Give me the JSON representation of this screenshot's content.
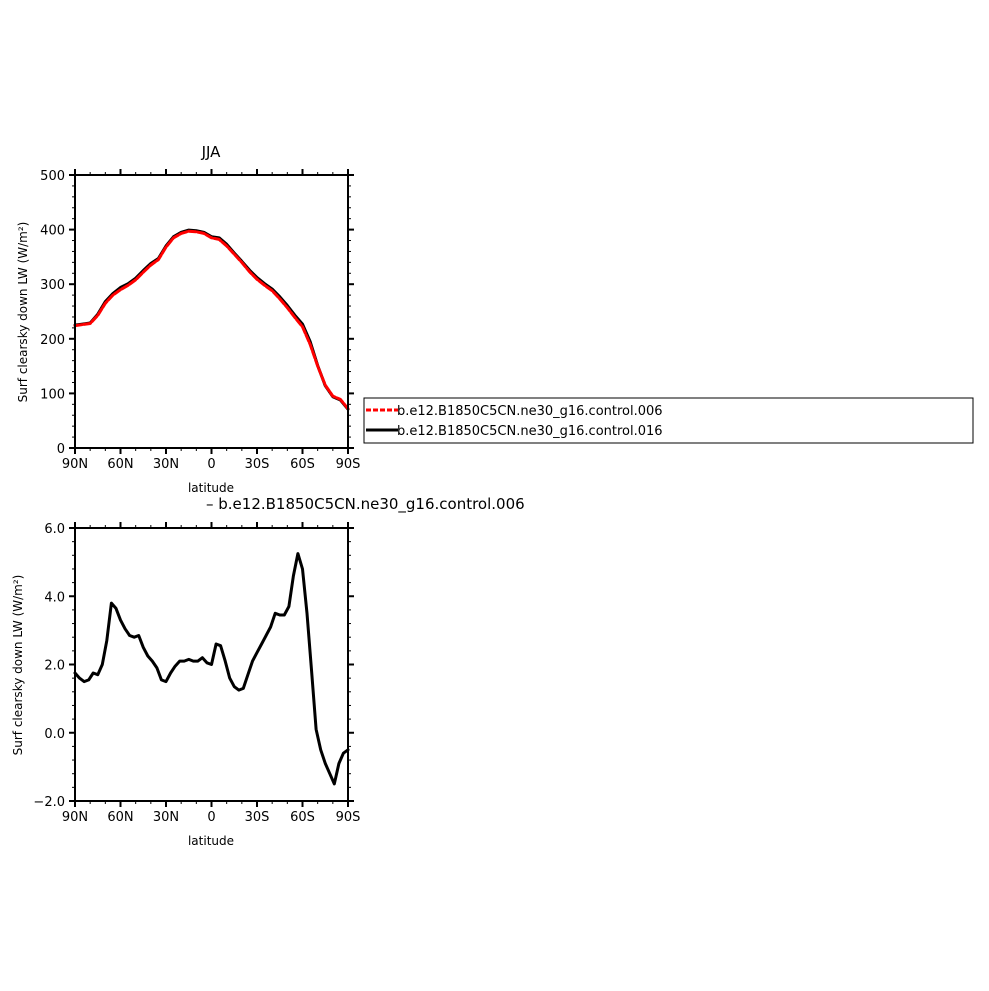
{
  "chart_data": [
    {
      "type": "line",
      "title": "JJA",
      "xlabel": "latitude",
      "ylabel": "Surf clearsky down LW (W/m²)",
      "xlim": [
        90,
        -90
      ],
      "ylim": [
        0,
        500
      ],
      "x_ticks": [
        90,
        60,
        30,
        0,
        -30,
        -60,
        -90
      ],
      "x_tick_labels": [
        "90N",
        "60N",
        "30N",
        "0",
        "30S",
        "60S",
        "90S"
      ],
      "y_ticks": [
        0,
        100,
        200,
        300,
        400,
        500
      ],
      "y_tick_labels": [
        "0",
        "100",
        "200",
        "300",
        "400",
        "500"
      ],
      "legend_position": "right",
      "x": [
        90,
        85,
        80,
        75,
        70,
        65,
        60,
        55,
        50,
        45,
        40,
        35,
        30,
        25,
        20,
        15,
        10,
        5,
        0,
        -5,
        -10,
        -15,
        -20,
        -25,
        -30,
        -35,
        -40,
        -45,
        -50,
        -55,
        -60,
        -65,
        -70,
        -75,
        -80,
        -85,
        -90
      ],
      "series": [
        {
          "name": "b.e12.B1850C5CN.ne30_g16.control.006",
          "color": "#ff0000",
          "dash": true,
          "values": [
            224,
            226,
            228,
            243,
            265,
            280,
            290,
            298,
            308,
            322,
            335,
            345,
            368,
            385,
            393,
            397,
            396,
            393,
            385,
            382,
            370,
            355,
            340,
            323,
            309,
            298,
            288,
            273,
            257,
            239,
            222,
            190,
            150,
            115,
            95,
            89,
            72
          ]
        },
        {
          "name": "b.e12.B1850C5CN.ne30_g16.control.016",
          "color": "#000000",
          "dash": false,
          "values": [
            225,
            227,
            229,
            245,
            268,
            283,
            294,
            301,
            311,
            325,
            338,
            347,
            370,
            387,
            395,
            399,
            398,
            395,
            387,
            385,
            373,
            357,
            342,
            326,
            312,
            301,
            291,
            277,
            261,
            243,
            227,
            195,
            151,
            114,
            94,
            88,
            71
          ]
        }
      ]
    },
    {
      "type": "line",
      "title": "– b.e12.B1850C5CN.ne30_g16.control.006",
      "xlabel": "latitude",
      "ylabel": "Surf clearsky down LW (W/m²)",
      "xlim": [
        90,
        -90
      ],
      "ylim": [
        -2,
        6
      ],
      "x_ticks": [
        90,
        60,
        30,
        0,
        -30,
        -60,
        -90
      ],
      "x_tick_labels": [
        "90N",
        "60N",
        "30N",
        "0",
        "30S",
        "60S",
        "90S"
      ],
      "y_ticks": [
        -2,
        0,
        2,
        4,
        6
      ],
      "y_tick_labels": [
        "−2.0",
        "0.0",
        "2.0",
        "4.0",
        "6.0"
      ],
      "x": [
        90,
        87,
        84,
        81,
        78,
        75,
        72,
        69,
        66,
        63,
        60,
        57,
        54,
        51,
        48,
        45,
        42,
        39,
        36,
        33,
        30,
        27,
        24,
        21,
        18,
        15,
        12,
        9,
        6,
        3,
        0,
        -3,
        -6,
        -9,
        -12,
        -15,
        -18,
        -21,
        -24,
        -27,
        -30,
        -33,
        -36,
        -39,
        -42,
        -45,
        -48,
        -51,
        -54,
        -57,
        -60,
        -63,
        -66,
        -69,
        -72,
        -75,
        -78,
        -81,
        -84,
        -87,
        -90
      ],
      "series": [
        {
          "color": "#000000",
          "values": [
            1.75,
            1.6,
            1.5,
            1.55,
            1.75,
            1.7,
            2.0,
            2.7,
            3.8,
            3.65,
            3.3,
            3.05,
            2.85,
            2.8,
            2.85,
            2.5,
            2.25,
            2.1,
            1.9,
            1.55,
            1.5,
            1.75,
            1.95,
            2.1,
            2.1,
            2.15,
            2.1,
            2.1,
            2.2,
            2.05,
            2.0,
            2.6,
            2.55,
            2.1,
            1.6,
            1.35,
            1.25,
            1.3,
            1.7,
            2.1,
            2.35,
            2.6,
            2.85,
            3.1,
            3.5,
            3.45,
            3.45,
            3.7,
            4.6,
            5.25,
            4.8,
            3.5,
            1.8,
            0.1,
            -0.5,
            -0.9,
            -1.2,
            -1.5,
            -0.9,
            -0.6,
            -0.5
          ]
        }
      ]
    }
  ],
  "colors": {
    "axis": "#000000"
  }
}
